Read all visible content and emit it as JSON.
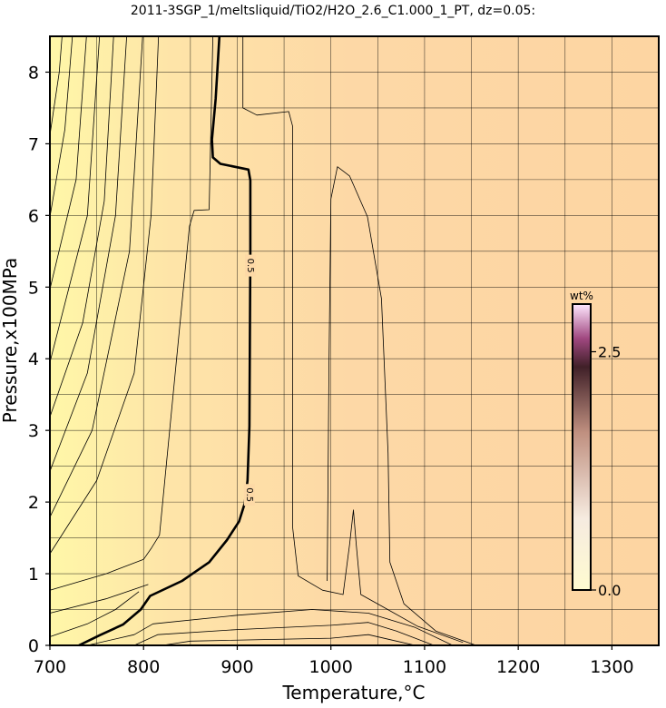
{
  "chart_data": {
    "type": "contour",
    "title": "2011-3SGP_1/meltsliquid/TiO2/H2O_2.6_C1.000_1_PT, dz=0.05:",
    "x_label": "Temperature,°C",
    "y_label": "Pressure,x100MPa",
    "xlim": [
      700,
      1350
    ],
    "ylim": [
      0,
      8.5
    ],
    "xticks": [
      700,
      800,
      900,
      1000,
      1100,
      1200,
      1300
    ],
    "yticks": [
      0,
      1,
      2,
      3,
      4,
      5,
      6,
      7,
      8
    ],
    "xgrid": [
      750,
      800,
      850,
      900,
      950,
      1000,
      1050,
      1100,
      1150,
      1200,
      1250,
      1300
    ],
    "ygrid": [
      0.5,
      1,
      1.5,
      2,
      2.5,
      3,
      3.5,
      4,
      4.5,
      5,
      5.5,
      6,
      6.5,
      7,
      7.5,
      8
    ],
    "grid": true,
    "line_color": "#000000",
    "series": [
      {
        "level": 0.5,
        "x": [
          731,
          753,
          778,
          797,
          807,
          841,
          870,
          889,
          902,
          908,
          911,
          913,
          914,
          914,
          912,
          882,
          874,
          873,
          877,
          881
        ],
        "y": [
          0,
          0.14,
          0.29,
          0.5,
          0.69,
          0.9,
          1.16,
          1.47,
          1.73,
          1.98,
          2.3,
          3.06,
          5.47,
          6.49,
          6.64,
          6.72,
          6.81,
          7.06,
          7.63,
          8.5
        ]
      },
      {
        "x": [
          700,
          710,
          713
        ],
        "y": [
          7.12,
          8.0,
          8.5
        ]
      },
      {
        "x": [
          700,
          716,
          724
        ],
        "y": [
          5.98,
          7.2,
          8.5
        ]
      },
      {
        "x": [
          700,
          728,
          739
        ],
        "y": [
          4.97,
          6.5,
          8.5
        ]
      },
      {
        "x": [
          700,
          740,
          753
        ],
        "y": [
          3.95,
          6,
          8.5
        ]
      },
      {
        "x": [
          700,
          735,
          758,
          768
        ],
        "y": [
          3.19,
          4.5,
          6.2,
          8.5
        ]
      },
      {
        "x": [
          700,
          740,
          770,
          782
        ],
        "y": [
          2.43,
          3.8,
          6,
          8.5
        ]
      },
      {
        "x": [
          700,
          745,
          785,
          799
        ],
        "y": [
          1.79,
          3,
          5.5,
          8.5
        ]
      },
      {
        "x": [
          700,
          750,
          790,
          808,
          816
        ],
        "y": [
          1.28,
          2.3,
          3.8,
          6,
          8.5
        ]
      },
      {
        "x": [
          700,
          760,
          800,
          808,
          817,
          849,
          854,
          870,
          874
        ],
        "y": [
          0.77,
          1.0,
          1.2,
          1.35,
          1.54,
          5.85,
          6.07,
          6.08,
          8.5
        ]
      },
      {
        "x": [
          700,
          740,
          770,
          795
        ],
        "y": [
          0.12,
          0.3,
          0.5,
          0.75
        ]
      },
      {
        "x": [
          700,
          760,
          805
        ],
        "y": [
          0.45,
          0.65,
          0.85
        ]
      },
      {
        "x": [
          906,
          906,
          921,
          955,
          959,
          959,
          965,
          991,
          1013,
          1020,
          1024,
          1027,
          1032,
          1054,
          1092,
          1141
        ],
        "y": [
          8.5,
          7.5,
          7.4,
          7.45,
          7.25,
          1.66,
          0.97,
          0.77,
          0.71,
          1.41,
          1.89,
          1.41,
          0.71,
          0.55,
          0.27,
          0.04
        ]
      },
      {
        "x": [
          996,
          998,
          1000,
          1007,
          1020,
          1039,
          1054,
          1061,
          1063,
          1078,
          1112,
          1155
        ],
        "y": [
          0.9,
          3.95,
          6.23,
          6.68,
          6.55,
          5.98,
          4.84,
          2.68,
          1.16,
          0.58,
          0.2,
          0
        ]
      },
      {
        "x": [
          740,
          790,
          810,
          900,
          980,
          1040,
          1090,
          1130
        ],
        "y": [
          0,
          0.15,
          0.3,
          0.42,
          0.5,
          0.45,
          0.25,
          0
        ]
      },
      {
        "x": [
          790,
          815,
          900,
          1000,
          1040,
          1070,
          1110
        ],
        "y": [
          0,
          0.15,
          0.22,
          0.28,
          0.32,
          0.2,
          0
        ]
      },
      {
        "x": [
          820,
          850,
          1000,
          1040,
          1070,
          1090
        ],
        "y": [
          0,
          0.06,
          0.1,
          0.15,
          0.06,
          0
        ]
      }
    ],
    "colorbar": {
      "title": "wt%",
      "clim": [
        0,
        3
      ],
      "ticks": [
        {
          "value": 0,
          "label": "0.0"
        },
        2.5
      ]
    }
  }
}
